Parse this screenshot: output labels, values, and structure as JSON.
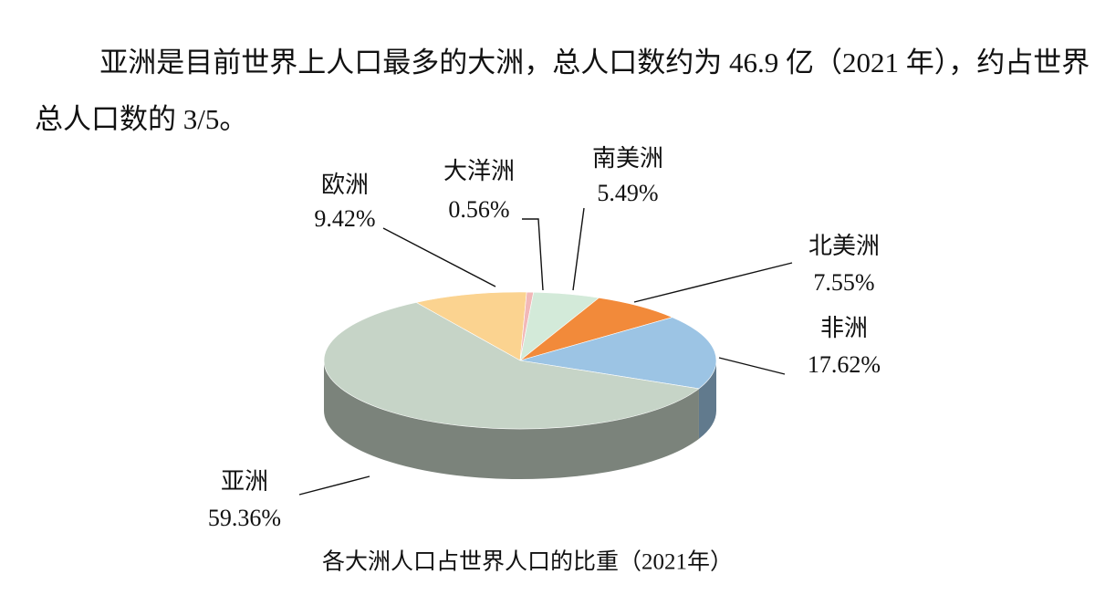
{
  "paragraph": "亚洲是目前世界上人口最多的大洲，总人口数约为 46.9 亿（2021 年），约占世界总人口数的 3/5。",
  "chart_data": {
    "type": "pie",
    "title": "各大洲人口占世界人口的比重（2021年）",
    "categories": [
      "欧洲",
      "大洋洲",
      "南美洲",
      "北美洲",
      "非洲",
      "亚洲"
    ],
    "values": [
      9.42,
      0.56,
      5.49,
      7.55,
      17.62,
      59.36
    ],
    "value_labels": [
      "9.42%",
      "0.56%",
      "5.49%",
      "7.55%",
      "17.62%",
      "59.36%"
    ],
    "colors": [
      "#fbd390",
      "#f2b8b8",
      "#d3ead9",
      "#f28a3a",
      "#9cc4e4",
      "#c6d4c7"
    ]
  }
}
